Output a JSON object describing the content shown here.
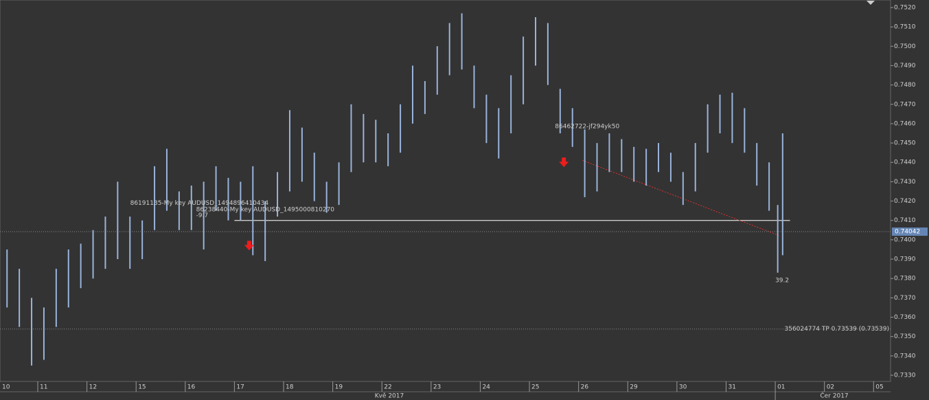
{
  "chart_data": {
    "type": "range-bar",
    "x": [
      0.375,
      0.625,
      0.875,
      1.125,
      1.375,
      1.625,
      1.875,
      2.125,
      2.375,
      2.625,
      2.875,
      3.125,
      3.375,
      3.625,
      3.875,
      4.125,
      4.375,
      4.625,
      4.875,
      5.125,
      5.375,
      5.625,
      5.875,
      6.125,
      6.375,
      6.625,
      6.875,
      7.125,
      7.375,
      7.625,
      7.875,
      8.125,
      8.375,
      8.625,
      8.875,
      9.125,
      9.375,
      9.625,
      9.875,
      10.125,
      10.375,
      10.625,
      10.875,
      11.125,
      11.375,
      11.625,
      11.875,
      12.125,
      12.375,
      12.625,
      12.875,
      13.125,
      13.375,
      13.625,
      13.875,
      14.125,
      14.375,
      14.625,
      14.875,
      15.125,
      15.375,
      15.625,
      15.875,
      16.05,
      16.15
    ],
    "high": [
      0.7395,
      0.7385,
      0.737,
      0.7365,
      0.7385,
      0.7395,
      0.7398,
      0.7405,
      0.7412,
      0.743,
      0.7412,
      0.741,
      0.7438,
      0.7447,
      0.7425,
      0.7428,
      0.743,
      0.7438,
      0.7432,
      0.743,
      0.7438,
      0.742,
      0.7435,
      0.7467,
      0.7458,
      0.7445,
      0.743,
      0.744,
      0.747,
      0.7465,
      0.7462,
      0.7455,
      0.747,
      0.749,
      0.7482,
      0.75,
      0.7512,
      0.7517,
      0.749,
      0.7475,
      0.7468,
      0.7485,
      0.7505,
      0.7515,
      0.7512,
      0.7478,
      0.7468,
      0.7457,
      0.745,
      0.7455,
      0.7452,
      0.7448,
      0.7447,
      0.745,
      0.7445,
      0.7435,
      0.745,
      0.747,
      0.7475,
      0.7476,
      0.7468,
      0.745,
      0.744,
      0.7418,
      0.7455
    ],
    "low": [
      0.7365,
      0.7355,
      0.7335,
      0.7338,
      0.7355,
      0.7365,
      0.7375,
      0.738,
      0.7385,
      0.739,
      0.7385,
      0.739,
      0.7405,
      0.7415,
      0.7405,
      0.7405,
      0.7395,
      0.7415,
      0.741,
      0.741,
      0.7392,
      0.7389,
      0.7412,
      0.7425,
      0.743,
      0.742,
      0.7414,
      0.7418,
      0.7435,
      0.744,
      0.744,
      0.7438,
      0.7445,
      0.746,
      0.7465,
      0.7475,
      0.7485,
      0.7488,
      0.7468,
      0.745,
      0.7442,
      0.7455,
      0.747,
      0.749,
      0.748,
      0.7455,
      0.7448,
      0.7422,
      0.7425,
      0.7435,
      0.7435,
      0.743,
      0.7428,
      0.7435,
      0.743,
      0.7418,
      0.7425,
      0.7445,
      0.7455,
      0.745,
      0.7445,
      0.7428,
      0.7415,
      0.7383,
      0.7392
    ],
    "color": "#9ab4dc",
    "xlim": [
      0.232,
      18.345
    ],
    "ylim": [
      0.73268,
      0.75239
    ],
    "xticks": [
      {
        "value": 0,
        "label": "10"
      },
      {
        "value": 1,
        "label": "11"
      },
      {
        "value": 2,
        "label": "12"
      },
      {
        "value": 3,
        "label": "15"
      },
      {
        "value": 4,
        "label": "16"
      },
      {
        "value": 5,
        "label": "17"
      },
      {
        "value": 6,
        "label": "18"
      },
      {
        "value": 7,
        "label": "19"
      },
      {
        "value": 8,
        "label": "22"
      },
      {
        "value": 9,
        "label": "23"
      },
      {
        "value": 10,
        "label": "24"
      },
      {
        "value": 11,
        "label": "25"
      },
      {
        "value": 12,
        "label": "26"
      },
      {
        "value": 13,
        "label": "29"
      },
      {
        "value": 14,
        "label": "30"
      },
      {
        "value": 15,
        "label": "31"
      },
      {
        "value": 16,
        "label": "01"
      },
      {
        "value": 17,
        "label": "02"
      },
      {
        "value": 18,
        "label": "05"
      }
    ],
    "month_ticks": [
      {
        "value": 8.15,
        "label": "Kvě 2017"
      },
      {
        "value": 17.2,
        "label": "Čer 2017"
      }
    ],
    "yticks": [
      {
        "value": 0.733,
        "label": "0.7330"
      },
      {
        "value": 0.734,
        "label": "0.7340"
      },
      {
        "value": 0.735,
        "label": "0.7350"
      },
      {
        "value": 0.736,
        "label": "0.7360"
      },
      {
        "value": 0.737,
        "label": "0.7370"
      },
      {
        "value": 0.738,
        "label": "0.7380"
      },
      {
        "value": 0.739,
        "label": "0.7390"
      },
      {
        "value": 0.74,
        "label": "0.7400"
      },
      {
        "value": 0.741,
        "label": "0.7410"
      },
      {
        "value": 0.742,
        "label": "0.7420"
      },
      {
        "value": 0.743,
        "label": "0.7430"
      },
      {
        "value": 0.744,
        "label": "0.7440"
      },
      {
        "value": 0.745,
        "label": "0.7450"
      },
      {
        "value": 0.746,
        "label": "0.7460"
      },
      {
        "value": 0.747,
        "label": "0.7470"
      },
      {
        "value": 0.748,
        "label": "0.7480"
      },
      {
        "value": 0.749,
        "label": "0.7490"
      },
      {
        "value": 0.75,
        "label": "0.7500"
      },
      {
        "value": 0.751,
        "label": "0.7510"
      },
      {
        "value": 0.752,
        "label": "0.7520"
      }
    ],
    "current_price": 0.74042,
    "tp_line": {
      "value": 0.73539,
      "label": "356024774 TP 0.73539 (0.73539)"
    },
    "level_line": {
      "value": 0.741,
      "x": [
        5.0,
        16.3
      ]
    },
    "trend_line": {
      "x": [
        12.08,
        16.1
      ],
      "y": [
        0.7441,
        0.7402
      ]
    },
    "sell_arrows": {
      "x": [
        5.3,
        11.7
      ],
      "y": [
        0.7397,
        0.744
      ]
    },
    "annotations": [
      {
        "text": "86191135-My key AUDUSD_1494896410434",
        "x": 2.88,
        "y": 0.7419
      },
      {
        "text": "86238440-My key AUDUSD_1495000810270",
        "x": 4.22,
        "y": 0.74155
      },
      {
        "text": "-9.7",
        "x": 4.22,
        "y": 0.74125
      },
      {
        "text": "86462722-jf294yk50",
        "x": 11.52,
        "y": 0.74585
      },
      {
        "text": "39.2",
        "x": 16.0,
        "y": 0.7379
      }
    ]
  }
}
